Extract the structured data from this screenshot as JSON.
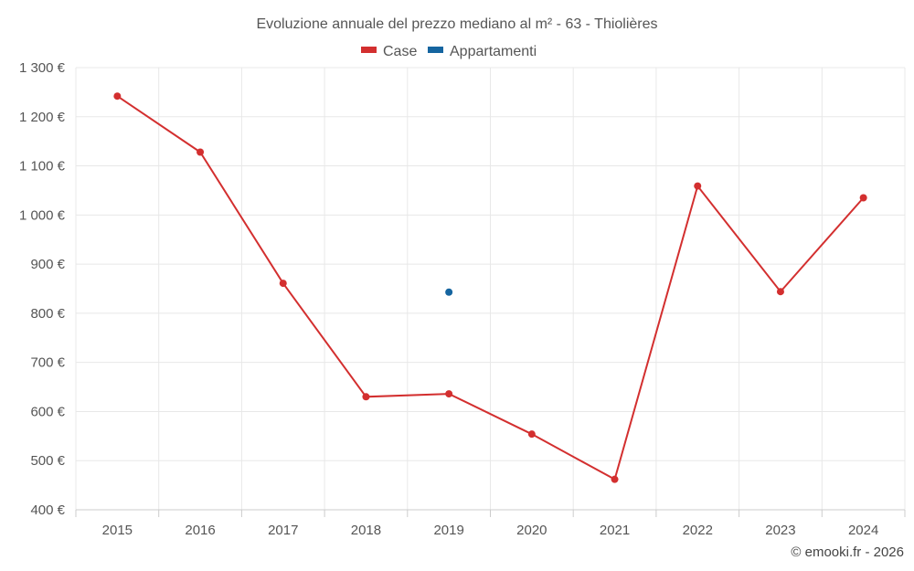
{
  "chart_data": {
    "type": "line",
    "title": "Evoluzione annuale del prezzo mediano al m² - 63 - Thiolières",
    "categories": [
      "2015",
      "2016",
      "2017",
      "2018",
      "2019",
      "2020",
      "2021",
      "2022",
      "2023",
      "2024"
    ],
    "ylim": [
      400,
      1300
    ],
    "yticks": [
      400,
      500,
      600,
      700,
      800,
      900,
      1000,
      1100,
      1200,
      1300
    ],
    "ytick_labels": [
      "400 €",
      "500 €",
      "600 €",
      "700 €",
      "800 €",
      "900 €",
      "1 000 €",
      "1 100 €",
      "1 200 €",
      "1 300 €"
    ],
    "grid": true,
    "legend_position": "top-center",
    "series": [
      {
        "name": "Case",
        "color": "#d32f2f",
        "values": [
          1242,
          1128,
          861,
          630,
          636,
          554,
          462,
          1059,
          844,
          1035
        ]
      },
      {
        "name": "Appartamenti",
        "color": "#1565a0",
        "values": [
          null,
          null,
          null,
          null,
          843,
          null,
          null,
          null,
          null,
          null
        ]
      }
    ]
  },
  "credit": "© emooki.fr - 2026"
}
